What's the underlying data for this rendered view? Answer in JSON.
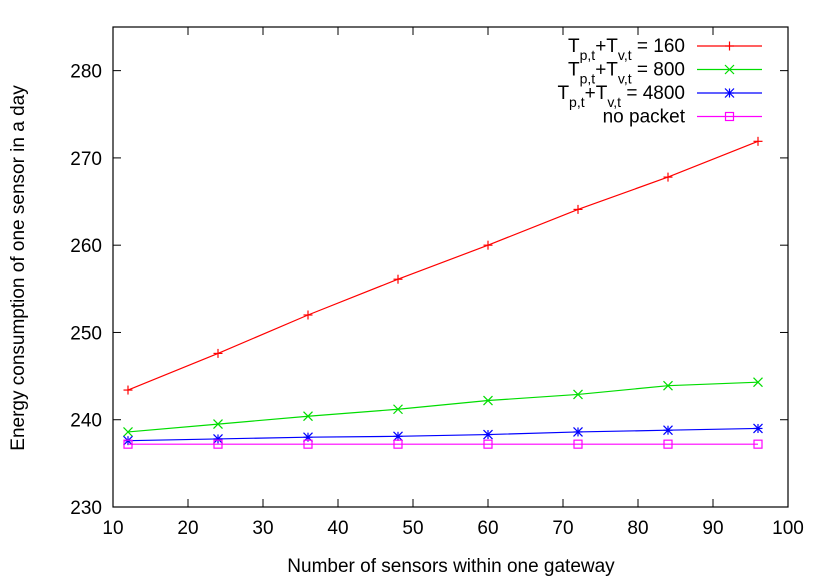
{
  "chart_data": {
    "type": "line",
    "xlabel": "Number of sensors within one gateway",
    "ylabel": "Energy consumption of one sensor in a day",
    "xlim": [
      10,
      100
    ],
    "ylim": [
      230,
      285
    ],
    "xticks": [
      10,
      20,
      30,
      40,
      50,
      60,
      70,
      80,
      90,
      100
    ],
    "yticks": [
      230,
      240,
      250,
      260,
      270,
      280
    ],
    "x": [
      12,
      24,
      36,
      48,
      60,
      72,
      84,
      96
    ],
    "grid": false,
    "legend_position": "top-right",
    "series": [
      {
        "legend": {
          "base1": "T",
          "sub1": "p,t",
          "mid": "+T",
          "sub2": "v,t",
          "rest": " = 160"
        },
        "color": "#ff0000",
        "marker": "plus",
        "values": [
          243.4,
          247.6,
          252.0,
          256.1,
          260.0,
          264.1,
          267.8,
          271.9
        ]
      },
      {
        "legend": {
          "base1": "T",
          "sub1": "p,t",
          "mid": "+T",
          "sub2": "v,t",
          "rest": " = 800"
        },
        "color": "#00dd00",
        "marker": "cross",
        "values": [
          238.6,
          239.5,
          240.4,
          241.2,
          242.2,
          242.9,
          243.9,
          244.3
        ]
      },
      {
        "legend": {
          "base1": "T",
          "sub1": "p,t",
          "mid": "+T",
          "sub2": "v,t",
          "rest": " = 4800"
        },
        "color": "#0000ff",
        "marker": "star",
        "values": [
          237.6,
          237.8,
          238.0,
          238.1,
          238.3,
          238.6,
          238.8,
          239.0
        ]
      },
      {
        "legend": {
          "base1": "no packet",
          "sub1": "",
          "mid": "",
          "sub2": "",
          "rest": ""
        },
        "color": "#ff00ff",
        "marker": "square",
        "values": [
          237.2,
          237.2,
          237.2,
          237.2,
          237.2,
          237.2,
          237.2,
          237.2
        ]
      }
    ]
  }
}
